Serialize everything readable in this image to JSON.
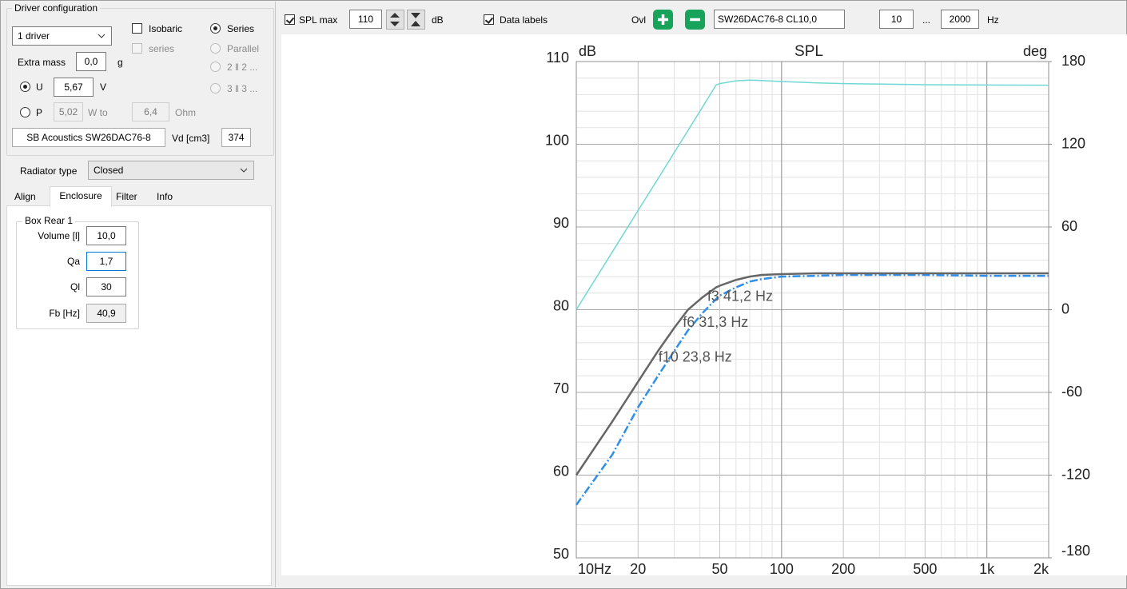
{
  "panel": {
    "driver_config": {
      "title": "Driver configuration",
      "drivers": "1 driver",
      "isobaric": "Isobaric",
      "series_check": "series",
      "series_radio": "Series",
      "parallel": "Parallel",
      "opt_2_2": "2 ‖ 2 ...",
      "opt_3_3": "3 ‖ 3 ...",
      "extra_mass_label": "Extra mass",
      "extra_mass": "0,0",
      "extra_mass_unit": "g",
      "u_label": "U",
      "u_value": "5,67",
      "u_unit": "V",
      "p_label": "P",
      "p_value": "5,02",
      "p_unit": "W to",
      "ohm_value": "6,4",
      "ohm_unit": "Ohm",
      "driver_name": "SB Acoustics SW26DAC76-8",
      "vd_label": "Vd [cm3]",
      "vd_value": "374"
    },
    "radiator_type_label": "Radiator type",
    "radiator_type": "Closed",
    "tabs": [
      "Align",
      "Enclosure",
      "Filter",
      "Info"
    ],
    "box": {
      "title": "Box Rear 1",
      "fields": [
        {
          "label": "Volume [l]",
          "value": "10,0"
        },
        {
          "label": "Qa",
          "value": "1,7"
        },
        {
          "label": "Ql",
          "value": "30"
        },
        {
          "label": "Fb [Hz]",
          "value": "40,9"
        }
      ]
    }
  },
  "toolbar": {
    "spl_max_label": "SPL max",
    "spl_max": "110",
    "spl_unit": "dB",
    "data_labels": "Data labels",
    "ovl": "Ovl",
    "overlay_name": "SW26DAC76-8 CL10,0",
    "f_min": "10",
    "range_sep": "...",
    "f_max": "2000",
    "f_unit": "Hz"
  },
  "chart_data": {
    "type": "line",
    "title": "SPL",
    "ylabel": "dB",
    "y2label": "deg",
    "xlog": true,
    "grid": true,
    "x": [
      10,
      15,
      20,
      25,
      30,
      35,
      41.2,
      48,
      50,
      60,
      70,
      80,
      100,
      150,
      200,
      500,
      1000,
      2000
    ],
    "series": [
      {
        "color": "#666666",
        "values": [
          60,
          66.5,
          71.3,
          75,
          77.8,
          80,
          81.5,
          82.7,
          82.9,
          83.6,
          84,
          84.2,
          84.3,
          84.4,
          84.4,
          84.4,
          84.4,
          84.4
        ]
      },
      {
        "color": "#2f8fe8",
        "dash": "10,3,2,3",
        "values": [
          56.4,
          62.5,
          68.2,
          72,
          75,
          77.5,
          79.6,
          81.3,
          81.7,
          82.7,
          83.4,
          83.7,
          84,
          84.1,
          84.2,
          84.2,
          84.1,
          84.1
        ]
      },
      {
        "color": "#6fd8d4",
        "axis": "y2",
        "values": [
          0,
          42,
          72,
          95,
          114,
          130,
          147,
          163,
          164,
          166,
          166.5,
          166.2,
          165.5,
          164.5,
          164,
          163.2,
          163,
          162.8
        ]
      }
    ],
    "annotations": [
      {
        "text": "f3 41,2 Hz",
        "x": 41.2
      },
      {
        "text": "f6 31,3 Hz",
        "x": 31.3
      },
      {
        "text": "f10 23,8 Hz",
        "x": 23.8
      }
    ],
    "xlim": [
      10,
      2000
    ],
    "xticks": [
      {
        "value": 10,
        "label": "10Hz"
      },
      20,
      50,
      100,
      200,
      500,
      {
        "value": 1000,
        "label": "1k"
      },
      {
        "value": 2000,
        "label": "2k"
      }
    ],
    "ylim": [
      50,
      110
    ],
    "yticks": [
      50,
      60,
      70,
      80,
      90,
      100,
      110
    ],
    "y2lim": [
      -180,
      180
    ],
    "y2ticks": [
      -180,
      -120,
      -60,
      0,
      60,
      120,
      180
    ]
  }
}
